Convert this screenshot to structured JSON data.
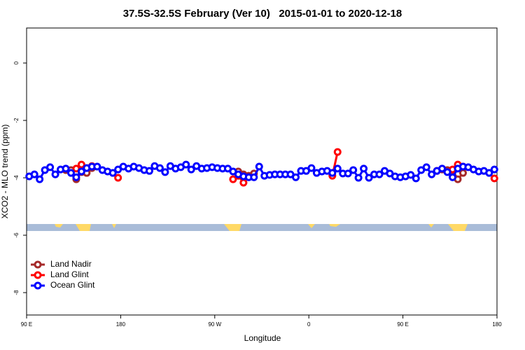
{
  "chart_data": {
    "type": "line",
    "title": "37.5S-32.5S February (Ver 10)   2015-01-01 to 2020-12-18",
    "x_label": "Longitude",
    "y_label": "XCO2 - MLO trend (ppm)",
    "xlim": [
      90,
      540
    ],
    "ylim": [
      -8.78,
      1.22
    ],
    "xticks": [
      {
        "value": 90,
        "label": "90 E"
      },
      {
        "value": 180,
        "label": "180"
      },
      {
        "value": 270,
        "label": "90 W"
      },
      {
        "value": 360,
        "label": "0"
      },
      {
        "value": 450,
        "label": "90 E"
      },
      {
        "value": 540,
        "label": "180"
      }
    ],
    "yticks": [
      0,
      -2,
      -4,
      -6,
      -8
    ],
    "legend": "bottomleft",
    "series": [
      {
        "name": "Land Nadir",
        "color": "#a52a2a",
        "x": [
          127.5,
          132.5,
          137.5,
          142.5,
          147.5,
          152.5,
          157.5,
          292.5,
          297.5,
          302.5,
          307.5,
          312.5,
          487.5,
          492.5,
          497.5,
          502.5,
          507.5
        ],
        "values": [
          -3.73,
          -3.73,
          -4.05,
          -3.8,
          -3.83,
          -3.66,
          null,
          -3.78,
          -3.88,
          -3.93,
          -3.85,
          null,
          -3.71,
          -3.73,
          -3.73,
          -4.05,
          -3.83
        ]
      },
      {
        "name": "Land Glint",
        "color": "#ff0000",
        "x": [
          137.5,
          142.5,
          147.5,
          152.5,
          157.5,
          177.5,
          182.5,
          287.5,
          292.5,
          297.5,
          302.5,
          382.5,
          387.5,
          392.5,
          482.5,
          487.5,
          497.5,
          502.5,
          507.5,
          512.5,
          537.5
        ],
        "values": [
          -3.68,
          -3.54,
          -3.66,
          -3.59,
          null,
          -4.0,
          null,
          -4.05,
          -3.93,
          -4.17,
          null,
          -3.93,
          -3.1,
          null,
          -3.76,
          null,
          -3.71,
          -3.54,
          -3.61,
          null,
          -4.02
        ]
      },
      {
        "name": "Ocean Glint",
        "color": "#0000ff",
        "x": [
          92.5,
          97.5,
          102.5,
          107.5,
          112.5,
          117.5,
          122.5,
          127.5,
          132.5,
          137.5,
          142.5,
          147.5,
          152.5,
          157.5,
          162.5,
          167.5,
          172.5,
          177.5,
          182.5,
          187.5,
          192.5,
          197.5,
          202.5,
          207.5,
          212.5,
          217.5,
          222.5,
          227.5,
          232.5,
          237.5,
          242.5,
          247.5,
          252.5,
          257.5,
          262.5,
          267.5,
          272.5,
          277.5,
          282.5,
          287.5,
          292.5,
          297.5,
          302.5,
          307.5,
          312.5,
          317.5,
          322.5,
          327.5,
          332.5,
          337.5,
          342.5,
          347.5,
          352.5,
          357.5,
          362.5,
          367.5,
          372.5,
          377.5,
          382.5,
          387.5,
          392.5,
          397.5,
          402.5,
          407.5,
          412.5,
          417.5,
          422.5,
          427.5,
          432.5,
          437.5,
          442.5,
          447.5,
          452.5,
          457.5,
          462.5,
          467.5,
          472.5,
          477.5,
          482.5,
          487.5,
          492.5,
          497.5,
          502.5,
          507.5,
          512.5,
          517.5,
          522.5,
          527.5,
          532.5,
          537.5
        ],
        "values": [
          -3.95,
          -3.88,
          -4.05,
          -3.73,
          -3.63,
          -3.88,
          -3.71,
          -3.68,
          -3.83,
          -3.98,
          -3.78,
          -3.66,
          -3.61,
          -3.61,
          -3.73,
          -3.78,
          -3.83,
          -3.71,
          -3.61,
          -3.68,
          -3.61,
          -3.66,
          -3.73,
          -3.76,
          -3.59,
          -3.66,
          -3.8,
          -3.59,
          -3.68,
          -3.63,
          -3.54,
          -3.71,
          -3.59,
          -3.68,
          -3.66,
          -3.63,
          -3.66,
          -3.68,
          -3.68,
          -3.78,
          -3.88,
          -3.95,
          -3.98,
          -3.98,
          -3.61,
          -3.93,
          -3.9,
          -3.88,
          -3.88,
          -3.88,
          -3.88,
          -3.98,
          -3.76,
          -3.76,
          -3.66,
          -3.83,
          -3.78,
          -3.76,
          -3.83,
          -3.68,
          -3.85,
          -3.85,
          -3.73,
          -4.0,
          -3.68,
          -4.0,
          -3.88,
          -3.88,
          -3.76,
          -3.85,
          -3.95,
          -3.98,
          -3.95,
          -3.9,
          -4.02,
          -3.73,
          -3.63,
          -3.88,
          -3.76,
          -3.68,
          -3.8,
          -3.98,
          -3.68,
          -3.61,
          -3.63,
          -3.71,
          -3.78,
          -3.76,
          -3.83,
          -3.71
        ]
      }
    ]
  }
}
